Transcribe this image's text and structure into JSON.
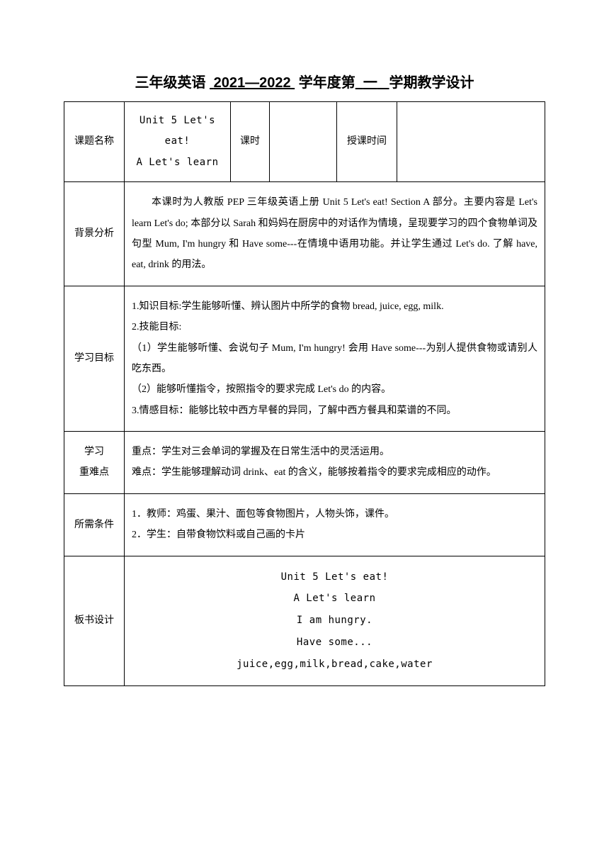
{
  "title": {
    "grade": "三年级英语",
    "year": "2021—2022",
    "year_label": "学年度第",
    "semester": "一",
    "suffix": "学期教学设计"
  },
  "rows": {
    "topic": {
      "label": "课题名称",
      "value_line1": "Unit 5 Let's eat!",
      "value_line2": "A Let's learn",
      "period_label": "课时",
      "period_value": "",
      "time_label": "授课时间",
      "time_value": ""
    },
    "background": {
      "label": "背景分析",
      "content": "本课时为人教版 PEP 三年级英语上册 Unit 5 Let's eat! Section A 部分。主要内容是 Let's learn  Let's do; 本部分以 Sarah 和妈妈在厨房中的对话作为情境，呈现要学习的四个食物单词及句型 Mum, I'm hungry 和 Have some---在情境中语用功能。并让学生通过 Let's do. 了解 have, eat, drink 的用法。"
    },
    "objectives": {
      "label": "学习目标",
      "item1": "1.知识目标:学生能够听懂、辨认图片中所学的食物 bread, juice, egg, milk.",
      "item2": "2.技能目标:",
      "item2a": "（1）学生能够听懂、会说句子 Mum, I'm hungry! 会用 Have some---为别人提供食物或请别人吃东西。",
      "item2b": "（2）能够听懂指令，按照指令的要求完成 Let's do 的内容。",
      "item3": "3.情感目标：能够比较中西方早餐的异同，了解中西方餐具和菜谱的不同。"
    },
    "keypoints": {
      "label_line1": "学习",
      "label_line2": "重难点",
      "content1": "重点：学生对三会单词的掌握及在日常生活中的灵活运用。",
      "content2": "难点：学生能够理解动词 drink、eat 的含义，能够按着指令的要求完成相应的动作。"
    },
    "conditions": {
      "label": "所需条件",
      "item1": "1．教师：鸡蛋、果汁、面包等食物图片，人物头饰，课件。",
      "item2": "2．学生：自带食物饮料或自己画的卡片"
    },
    "board": {
      "label": "板书设计",
      "line1": "Unit 5 Let's eat!",
      "line2": "A Let's learn",
      "line3": "I am hungry.",
      "line4": "Have some...",
      "line5": "juice,egg,milk,bread,cake,water"
    }
  }
}
